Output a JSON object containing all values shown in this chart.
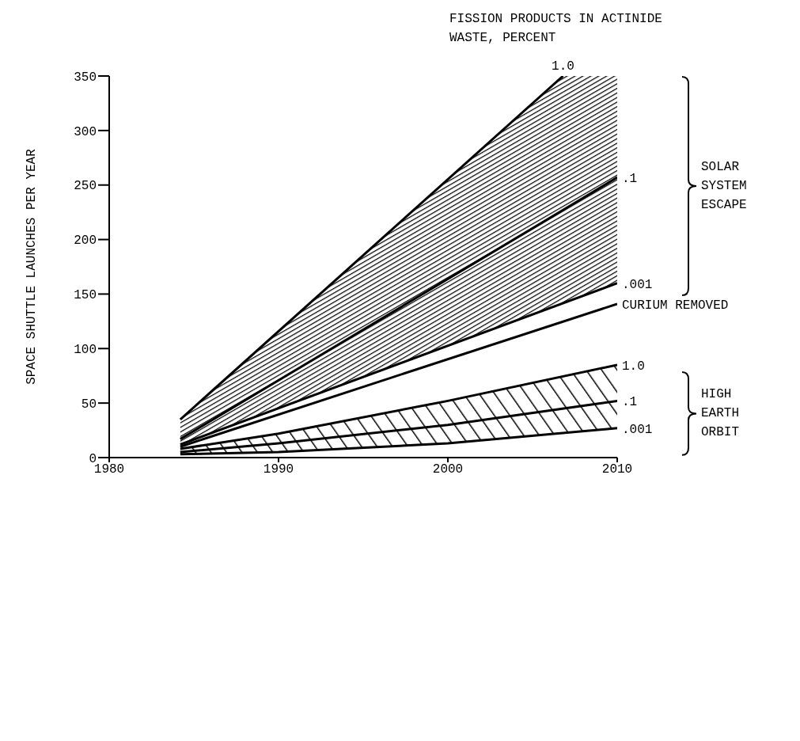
{
  "chart_data": {
    "type": "line",
    "legend_title": "FISSION PRODUCTS IN ACTINIDE WASTE, PERCENT",
    "ylabel": "SPACE SHUTTLE LAUNCHES PER YEAR",
    "xlim": [
      1980,
      2010
    ],
    "xticks": [
      1980,
      1990,
      2000,
      2010
    ],
    "ylim": [
      0,
      350
    ],
    "yticks": [
      0,
      50,
      100,
      150,
      200,
      250,
      300,
      350
    ],
    "grid": false,
    "legend": false,
    "marker": "none",
    "line_style": "solid",
    "series": [
      {
        "name": "1.0",
        "color": "#000000",
        "x": [
          1984.2,
          2006.8
        ],
        "values": [
          35,
          350
        ]
      },
      {
        "name": ".1",
        "color": "#000000",
        "x": [
          1984.2,
          2006.8,
          2010
        ],
        "values": [
          17,
          227,
          257
        ],
        "lower": [
          12,
          142,
          160
        ],
        "upper": [
          35,
          350,
          350
        ]
      },
      {
        "name": ".001",
        "color": "#000000",
        "x": [
          1984.2,
          2010
        ],
        "values": [
          12,
          160
        ]
      },
      {
        "name": "CURIUM REMOVED",
        "color": "#000000",
        "x": [
          1984.2,
          2010
        ],
        "values": [
          10,
          141
        ]
      },
      {
        "name": "1.0",
        "color": "#000000",
        "x": [
          1984.2,
          1990,
          2000,
          2010
        ],
        "values": [
          8,
          22,
          52,
          85
        ]
      },
      {
        "name": ".1",
        "color": "#000000",
        "x": [
          1984.2,
          1990,
          2000,
          2010
        ],
        "values": [
          5,
          13,
          30,
          52
        ],
        "lower": [
          3,
          5,
          13,
          27
        ],
        "upper": [
          8,
          22,
          52,
          85
        ]
      },
      {
        "name": ".001",
        "color": "#000000",
        "x": [
          1984.2,
          1990,
          2000,
          2010
        ],
        "values": [
          3,
          5,
          13,
          27
        ]
      }
    ],
    "annotations": [
      "SOLAR SYSTEM ESCAPE",
      "HIGH EARTH ORBIT"
    ]
  }
}
